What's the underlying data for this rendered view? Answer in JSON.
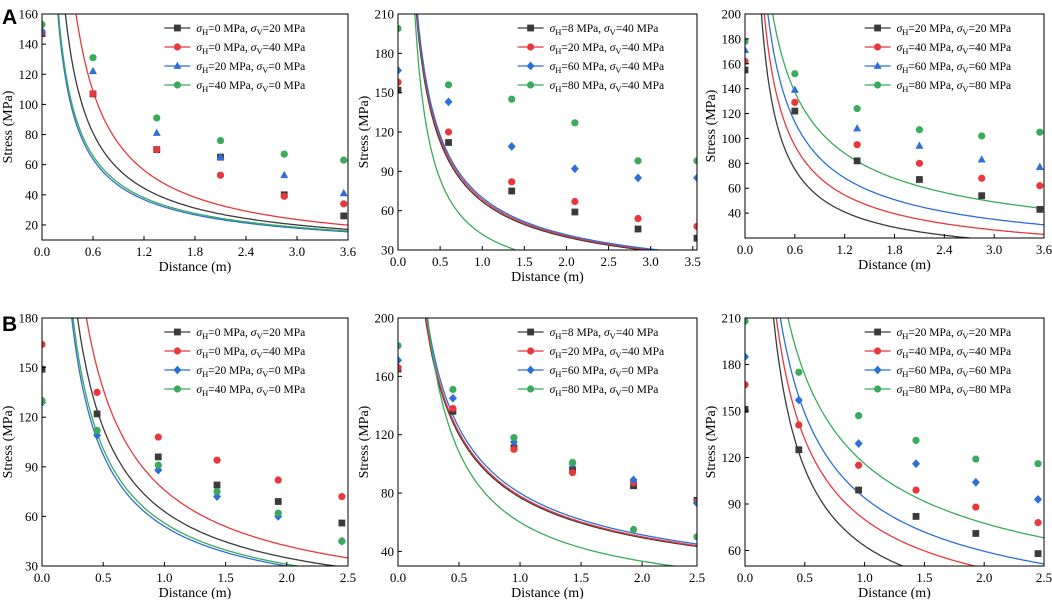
{
  "figure": {
    "panel_labels": [
      "A",
      "B"
    ],
    "legend_suffix": " MPa",
    "legend_sep": ", "
  },
  "chart_data": [
    {
      "panel": "A",
      "index": 0,
      "type": "scatter",
      "xlabel": "Distance (m)",
      "ylabel": "Stress (MPa)",
      "xlim": [
        0,
        3.6
      ],
      "ylim": [
        10,
        160
      ],
      "xticks": [
        "0.0",
        "0.6",
        "1.2",
        "1.8",
        "2.4",
        "3.0",
        "3.6"
      ],
      "xtick_values": [
        0,
        0.6,
        1.2,
        1.8,
        2.4,
        3.0,
        3.6
      ],
      "yticks": [
        "20",
        "40",
        "60",
        "80",
        "100",
        "120",
        "140",
        "160"
      ],
      "ytick_values": [
        20,
        40,
        60,
        80,
        100,
        120,
        140,
        160
      ],
      "series": [
        {
          "name": "σH=0 MPa, σV=20 MPa",
          "H": "0",
          "V": "20",
          "color": "#3b3b3b",
          "marker": "square",
          "x": [
            0,
            0.6,
            1.35,
            2.1,
            2.85,
            3.55
          ],
          "values": [
            147,
            107,
            70,
            65,
            40,
            26
          ],
          "curve": {
            "a": 52,
            "k": 0.87
          }
        },
        {
          "name": "σH=0 MPa, σV=40 MPa",
          "H": "0",
          "V": "40",
          "color": "#e8383d",
          "marker": "circle",
          "x": [
            0,
            0.6,
            1.35,
            2.1,
            2.85,
            3.55
          ],
          "values": [
            148,
            107,
            70,
            53,
            39,
            34
          ],
          "curve": {
            "a": 67,
            "k": 0.95
          }
        },
        {
          "name": "σH=20 MPa, σV=0 MPa",
          "H": "20",
          "V": "0",
          "color": "#2d6fd6",
          "marker": "triangle",
          "x": [
            0,
            0.6,
            1.35,
            2.1,
            2.85,
            3.55
          ],
          "values": [
            149,
            122,
            81,
            65,
            53,
            41
          ],
          "curve": {
            "a": 42.5,
            "k": 0.79
          }
        },
        {
          "name": "σH=40 MPa, σV=0 MPa",
          "H": "40",
          "V": "0",
          "color": "#3aaa5c",
          "marker": "circle",
          "x": [
            0,
            0.6,
            1.35,
            2.1,
            2.85,
            3.55
          ],
          "values": [
            153,
            131,
            91,
            76,
            67,
            63
          ],
          "curve": {
            "a": 44,
            "k": 0.79
          }
        }
      ]
    },
    {
      "panel": "A",
      "index": 1,
      "type": "scatter",
      "xlabel": "Distance (m)",
      "ylabel": "Stress (MPa)",
      "xlim": [
        0,
        3.55
      ],
      "ylim": [
        30,
        210
      ],
      "xticks": [
        "0.0",
        "0.5",
        "1.0",
        "1.5",
        "2.0",
        "2.5",
        "3.0",
        "3.5"
      ],
      "xtick_values": [
        0,
        0.5,
        1.0,
        1.5,
        2.0,
        2.5,
        3.0,
        3.5
      ],
      "yticks": [
        "30",
        "60",
        "90",
        "120",
        "150",
        "180",
        "210"
      ],
      "ytick_values": [
        30,
        60,
        90,
        120,
        150,
        180,
        210
      ],
      "series": [
        {
          "name": "σH=8 MPa, σV=40 MPa",
          "H": "8",
          "V": "40",
          "color": "#3b3b3b",
          "marker": "square",
          "x": [
            0,
            0.6,
            1.35,
            2.1,
            2.85,
            3.55
          ],
          "values": [
            152,
            112,
            75,
            59,
            46,
            39
          ],
          "curve": {
            "a": 67,
            "k": 0.75
          }
        },
        {
          "name": "σH=20 MPa, σV=40 MPa",
          "H": "20",
          "V": "40",
          "color": "#e8383d",
          "marker": "circle",
          "x": [
            0,
            0.6,
            1.35,
            2.1,
            2.85,
            3.55
          ],
          "values": [
            158,
            120,
            82,
            67,
            54,
            48
          ],
          "curve": {
            "a": 68.5,
            "k": 0.75
          }
        },
        {
          "name": "σH=60 MPa, σV=40 MPa",
          "H": "60",
          "V": "40",
          "color": "#2d6fd6",
          "marker": "diamond",
          "x": [
            0,
            0.6,
            1.35,
            2.1,
            2.85,
            3.55
          ],
          "values": [
            167,
            143,
            109,
            92,
            85,
            85
          ],
          "curve": {
            "a": 70,
            "k": 0.75
          }
        },
        {
          "name": "σH=80 MPa, σV=40 MPa",
          "H": "80",
          "V": "40",
          "color": "#3aaa5c",
          "marker": "circle",
          "x": [
            0,
            0.6,
            1.35,
            2.1,
            2.85,
            3.55
          ],
          "values": [
            199,
            156,
            145,
            127,
            98,
            98
          ],
          "curve": {
            "a": 42,
            "k": 1.0
          }
        }
      ]
    },
    {
      "panel": "A",
      "index": 2,
      "type": "scatter",
      "xlabel": "Distance (m)",
      "ylabel": "Stress (MPa)",
      "xlim": [
        0,
        3.6
      ],
      "ylim": [
        20,
        200
      ],
      "xticks": [
        "0.0",
        "0.6",
        "1.2",
        "1.8",
        "2.4",
        "3.0",
        "3.6"
      ],
      "xtick_values": [
        0,
        0.6,
        1.2,
        1.8,
        2.4,
        3.0,
        3.6
      ],
      "yticks": [
        "40",
        "60",
        "80",
        "100",
        "120",
        "140",
        "160",
        "180",
        "200"
      ],
      "ytick_values": [
        40,
        60,
        80,
        100,
        120,
        140,
        160,
        180,
        200
      ],
      "series": [
        {
          "name": "σH=20 MPa, σV=20 MPa",
          "H": "20",
          "V": "20",
          "color": "#3b3b3b",
          "marker": "square",
          "x": [
            0,
            0.6,
            1.35,
            2.1,
            2.85,
            3.55
          ],
          "values": [
            155,
            122,
            82,
            67,
            54,
            43
          ],
          "curve": {
            "a": 48,
            "k": 0.88
          }
        },
        {
          "name": "σH=40 MPa, σV=40 MPa",
          "H": "40",
          "V": "40",
          "color": "#e8383d",
          "marker": "circle",
          "x": [
            0,
            0.6,
            1.35,
            2.1,
            2.85,
            3.55
          ],
          "values": [
            162,
            129,
            95,
            80,
            68,
            62
          ],
          "curve": {
            "a": 63,
            "k": 0.79
          }
        },
        {
          "name": "σH=60 MPa, σV=60 MPa",
          "H": "60",
          "V": "60",
          "color": "#2d6fd6",
          "marker": "triangle",
          "x": [
            0,
            0.6,
            1.35,
            2.1,
            2.85,
            3.55
          ],
          "values": [
            171,
            139,
            108,
            94,
            83,
            77
          ],
          "curve": {
            "a": 78,
            "k": 0.73
          }
        },
        {
          "name": "σH=80 MPa, σV=80 MPa",
          "H": "80",
          "V": "80",
          "color": "#3aaa5c",
          "marker": "circle",
          "x": [
            0,
            0.6,
            1.35,
            2.1,
            2.85,
            3.55
          ],
          "values": [
            178,
            152,
            124,
            107,
            102,
            105
          ],
          "curve": {
            "a": 99,
            "k": 0.64
          }
        }
      ]
    },
    {
      "panel": "B",
      "index": 3,
      "type": "scatter",
      "xlabel": "Distance (m)",
      "ylabel": "Stress (MPa)",
      "xlim": [
        0,
        2.5
      ],
      "ylim": [
        30,
        180
      ],
      "xticks": [
        "0.0",
        "0.5",
        "1.0",
        "1.5",
        "2.0",
        "2.5"
      ],
      "xtick_values": [
        0,
        0.5,
        1.0,
        1.5,
        2.0,
        2.5
      ],
      "yticks": [
        "30",
        "60",
        "90",
        "120",
        "150",
        "180"
      ],
      "ytick_values": [
        30,
        60,
        90,
        120,
        150,
        180
      ],
      "series": [
        {
          "name": "σH=0 MPa, σV=20 MPa",
          "H": "0",
          "V": "20",
          "color": "#3b3b3b",
          "marker": "square",
          "x": [
            0,
            0.45,
            0.95,
            1.43,
            1.93,
            2.45
          ],
          "values": [
            149,
            122,
            96,
            79,
            69,
            56
          ],
          "curve": {
            "a": 63,
            "k": 0.85
          }
        },
        {
          "name": "σH=0 MPa, σV=40 MPa",
          "H": "0",
          "V": "40",
          "color": "#e8383d",
          "marker": "circle",
          "x": [
            0,
            0.45,
            0.95,
            1.43,
            1.93,
            2.45
          ],
          "values": [
            164,
            135,
            108,
            94,
            82,
            72
          ],
          "curve": {
            "a": 76,
            "k": 0.85
          }
        },
        {
          "name": "σH=20 MPa, σV=0 MPa",
          "H": "20",
          "V": "0",
          "color": "#2d6fd6",
          "marker": "diamond",
          "x": [
            0,
            0.45,
            0.95,
            1.43,
            1.93,
            2.45
          ],
          "values": [
            129,
            109,
            88,
            72,
            60,
            45
          ],
          "curve": {
            "a": 54,
            "k": 0.85
          }
        },
        {
          "name": "σH=40 MPa, σV=0 MPa",
          "H": "40",
          "V": "0",
          "color": "#3aaa5c",
          "marker": "circle",
          "x": [
            0,
            0.45,
            0.95,
            1.43,
            1.93,
            2.45
          ],
          "values": [
            130,
            112,
            91,
            75,
            62,
            45
          ],
          "curve": {
            "a": 56,
            "k": 0.85
          }
        }
      ]
    },
    {
      "panel": "B",
      "index": 4,
      "type": "scatter",
      "xlabel": "Distance (m)",
      "ylabel": "Stress (MPa)",
      "xlim": [
        0,
        2.45
      ],
      "ylim": [
        30,
        200
      ],
      "xticks": [
        "0.0",
        "0.5",
        "1.0",
        "1.5",
        "2.0",
        "2.5"
      ],
      "xtick_values": [
        0,
        0.5,
        1.0,
        1.5,
        2.0,
        2.5
      ],
      "yticks": [
        "40",
        "80",
        "120",
        "160",
        "200"
      ],
      "ytick_values": [
        40,
        80,
        120,
        160,
        200
      ],
      "series": [
        {
          "name": "σH=8 MPa, σV=40 MPa",
          "H": "8",
          "V": "40",
          "color": "#3b3b3b",
          "marker": "square",
          "x": [
            0,
            0.45,
            0.95,
            1.43,
            1.93,
            2.45
          ],
          "values": [
            165,
            136,
            111,
            96,
            85,
            75
          ],
          "curve": {
            "a": 77,
            "k": 0.64
          }
        },
        {
          "name": "σH=20 MPa, σV=40 MPa",
          "H": "20",
          "V": "40",
          "color": "#e8383d",
          "marker": "circle",
          "x": [
            0,
            0.45,
            0.95,
            1.43,
            1.93,
            2.45
          ],
          "values": [
            166,
            138,
            110,
            94,
            87,
            74
          ],
          "curve": {
            "a": 78,
            "k": 0.64
          }
        },
        {
          "name": "σH=60 MPa, σV=0 MPa",
          "H": "60",
          "V": "0",
          "color": "#2d6fd6",
          "marker": "diamond",
          "x": [
            0,
            0.45,
            0.95,
            1.43,
            1.93,
            2.45
          ],
          "values": [
            171,
            145,
            115,
            100,
            89,
            73
          ],
          "curve": {
            "a": 80,
            "k": 0.64
          }
        },
        {
          "name": "σH=80 MPa, σV=0 MPa",
          "H": "80",
          "V": "0",
          "color": "#3aaa5c",
          "marker": "circle",
          "x": [
            0,
            0.45,
            0.95,
            1.43,
            1.93,
            2.45
          ],
          "values": [
            181,
            151,
            118,
            101,
            55,
            50
          ],
          "curve": {
            "a": 60,
            "k": 0.85
          }
        }
      ]
    },
    {
      "panel": "B",
      "index": 5,
      "type": "scatter",
      "xlabel": "Distance (m)",
      "ylabel": "Stress (MPa)",
      "xlim": [
        0,
        2.5
      ],
      "ylim": [
        50,
        210
      ],
      "xticks": [
        "0.0",
        "0.5",
        "1.0",
        "1.5",
        "2.0",
        "2.5"
      ],
      "xtick_values": [
        0,
        0.5,
        1.0,
        1.5,
        2.0,
        2.5
      ],
      "yticks": [
        "60",
        "90",
        "120",
        "150",
        "180",
        "210"
      ],
      "ytick_values": [
        60,
        90,
        120,
        150,
        180,
        210
      ],
      "series": [
        {
          "name": "σH=20 MPa, σV=20 MPa",
          "H": "20",
          "V": "20",
          "color": "#3b3b3b",
          "marker": "square",
          "x": [
            0,
            0.45,
            0.95,
            1.43,
            1.93,
            2.45
          ],
          "values": [
            151,
            125,
            99,
            82,
            71,
            58
          ],
          "curve": {
            "a": 63,
            "k": 0.84
          }
        },
        {
          "name": "σH=40 MPa, σV=40 MPa",
          "H": "40",
          "V": "40",
          "color": "#e8383d",
          "marker": "circle",
          "x": [
            0,
            0.45,
            0.95,
            1.43,
            1.93,
            2.45
          ],
          "values": [
            167,
            141,
            115,
            99,
            88,
            78
          ],
          "curve": {
            "a": 80,
            "k": 0.72
          }
        },
        {
          "name": "σH=60 MPa, σV=60 MPa",
          "H": "60",
          "V": "60",
          "color": "#2d6fd6",
          "marker": "diamond",
          "x": [
            0,
            0.45,
            0.95,
            1.43,
            1.93,
            2.45
          ],
          "values": [
            185,
            157,
            129,
            116,
            104,
            93
          ],
          "curve": {
            "a": 94,
            "k": 0.66
          }
        },
        {
          "name": "σH=80 MPa, σV=80 MPa",
          "H": "80",
          "V": "80",
          "color": "#3aaa5c",
          "marker": "circle",
          "x": [
            0,
            0.45,
            0.95,
            1.43,
            1.93,
            2.45
          ],
          "values": [
            208,
            175,
            147,
            131,
            119,
            116
          ],
          "curve": {
            "a": 116,
            "k": 0.58
          }
        }
      ]
    }
  ]
}
